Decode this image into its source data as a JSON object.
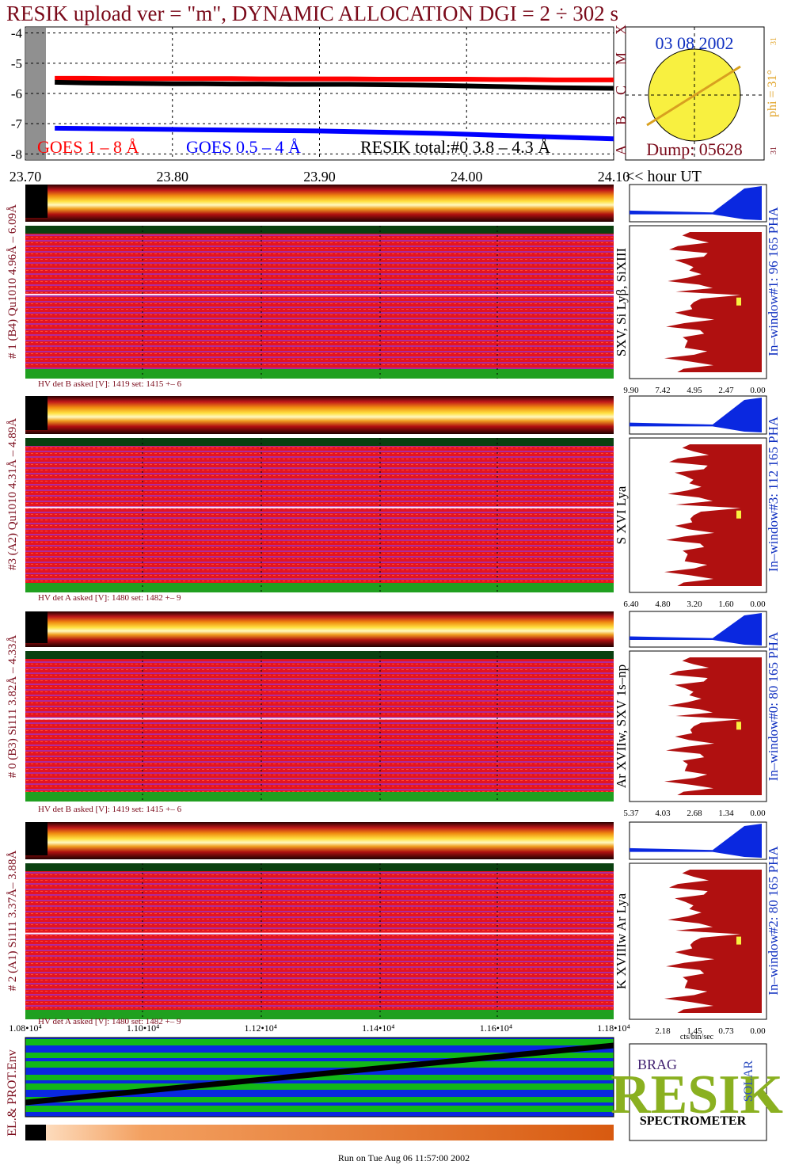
{
  "header": {
    "title": "RESIK upload ver = \"m\", DYNAMIC ALLOCATION  DGI =   2 ÷ 302 s"
  },
  "chart_data": [
    {
      "type": "line",
      "x": [
        23.72,
        23.74,
        23.76,
        23.78,
        23.8,
        23.82,
        23.84,
        23.86,
        23.88,
        23.9,
        23.92,
        23.94,
        23.96,
        23.98,
        24.0,
        24.02,
        24.04,
        24.06,
        24.08,
        24.1
      ],
      "series": [
        {
          "name": "GOES 1 – 8 Å",
          "color": "#ff0000",
          "values": [
            -5.5,
            -5.5,
            -5.51,
            -5.51,
            -5.51,
            -5.51,
            -5.51,
            -5.52,
            -5.52,
            -5.52,
            -5.52,
            -5.53,
            -5.53,
            -5.53,
            -5.53,
            -5.54,
            -5.54,
            -5.55,
            -5.55,
            -5.55
          ]
        },
        {
          "name": "GOES 0.5 – 4 Å",
          "color": "#0000ff",
          "values": [
            -7.15,
            -7.16,
            -7.17,
            -7.18,
            -7.19,
            -7.2,
            -7.21,
            -7.22,
            -7.23,
            -7.24,
            -7.26,
            -7.28,
            -7.3,
            -7.32,
            -7.35,
            -7.38,
            -7.41,
            -7.44,
            -7.47,
            -7.5
          ]
        },
        {
          "name": "RESIK total:#0  3.8 – 4.3 Å",
          "color": "#000000",
          "values": [
            -5.63,
            -5.65,
            -5.66,
            -5.67,
            -5.68,
            -5.68,
            -5.69,
            -5.69,
            -5.7,
            -5.7,
            -5.7,
            -5.71,
            -5.72,
            -5.73,
            -5.75,
            -5.77,
            -5.79,
            -5.81,
            -5.82,
            -5.83
          ]
        }
      ],
      "xlim": [
        23.7,
        24.1
      ],
      "xticks": [
        {
          "value": 23.7,
          "label": "23.70"
        },
        {
          "value": 23.8,
          "label": "23.80"
        },
        {
          "value": 23.9,
          "label": "23.90"
        },
        {
          "value": 24.0,
          "label": "24.00"
        },
        {
          "value": 24.1,
          "label": "24.10"
        }
      ],
      "x_label": "<< hour UT",
      "ylim": [
        -8.2,
        -3.8
      ],
      "yticks": [
        -4,
        -5,
        -6,
        -7,
        -8
      ],
      "grid": true
    }
  ],
  "sun_panel": {
    "date": "03 08 2002",
    "dump": "Dump: 05628",
    "phi": "phi = 31°",
    "letters": [
      "A",
      "B",
      "C",
      "M",
      "X"
    ],
    "corner": "31"
  },
  "panels": [
    {
      "left_label": "# 1 (B4) Qu1010 4.96Å – 6.09Å",
      "lines": "SXV, Si Lyβ, SiXIII",
      "window": "In–window#1:   96 165  PHA",
      "hv": "HV det B asked [V]:  1419 set:  1415 +–    6",
      "ticks": [
        "9.90",
        "7.42",
        "4.95",
        "2.47",
        "0.00"
      ]
    },
    {
      "left_label": "#3 (A2) Qu1010  4.31Å – 4.89Å",
      "lines": "S XVI Lya",
      "window": "In–window#3:  112 165  PHA",
      "hv": "HV det A asked [V]:  1480 set:  1482 +–    9",
      "ticks": [
        "6.40",
        "4.80",
        "3.20",
        "1.60",
        "0.00"
      ]
    },
    {
      "left_label": "# 0 (B3) Si111  3.82Å – 4.33Å",
      "lines": "Ar XVIIw,  SXV 1s–np",
      "window": "In–window#0:   80 165  PHA",
      "hv": "HV det B asked [V]:  1419 set:  1415 +–    6",
      "ticks": [
        "5.37",
        "4.03",
        "2.68",
        "1.34",
        "0.00"
      ]
    },
    {
      "left_label": "# 2 (A1) Si111  3.37Å– 3.88Å",
      "lines": "K XVIIIw  Ar Lya",
      "window": "In–window#2:   80 165  PHA",
      "hv": "HV det A asked [V]:  1480 set:  1482 +–    9",
      "ticks": [
        "2.18",
        "1.45",
        "0.73",
        "0.00"
      ]
    }
  ],
  "bottom_axis": {
    "labels": [
      "1.08•10⁴",
      "1.10•10⁴",
      "1.12•10⁴",
      "1.14•10⁴",
      "1.16•10⁴",
      "1.18•10⁴"
    ],
    "hist_unit": "cts/bin/sec"
  },
  "env_label": "EL.& PROT.Env",
  "logo": {
    "letters": "RESIK",
    "sub": "SPECTROMETER",
    "corner": "BRAG",
    "side": "SOLAR"
  },
  "footer": "Run on Tue Aug 06 11:57:00 2002"
}
